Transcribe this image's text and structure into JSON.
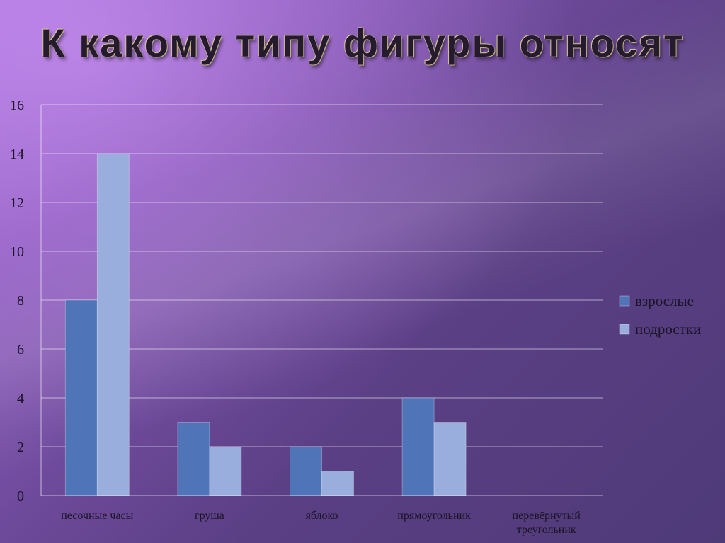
{
  "slide": {
    "title": "К какому типу фигуры относят"
  },
  "chart_data": {
    "type": "bar",
    "title": "",
    "xlabel": "",
    "ylabel": "",
    "ylim": [
      0,
      16
    ],
    "yticks": [
      0,
      2,
      4,
      6,
      8,
      10,
      12,
      14,
      16
    ],
    "categories": [
      [
        "песочные часы"
      ],
      [
        "груша"
      ],
      [
        "яблоко"
      ],
      [
        "прямоугольник"
      ],
      [
        "перевёрнутый",
        "треугольник"
      ]
    ],
    "series": [
      {
        "name": "взрослые",
        "values": [
          8,
          3,
          2,
          4,
          0
        ],
        "color": "#4f74b8"
      },
      {
        "name": "подростки",
        "values": [
          14,
          2,
          1,
          3,
          0
        ],
        "color": "#9aaedd"
      }
    ],
    "legend": "right",
    "grid": true
  }
}
